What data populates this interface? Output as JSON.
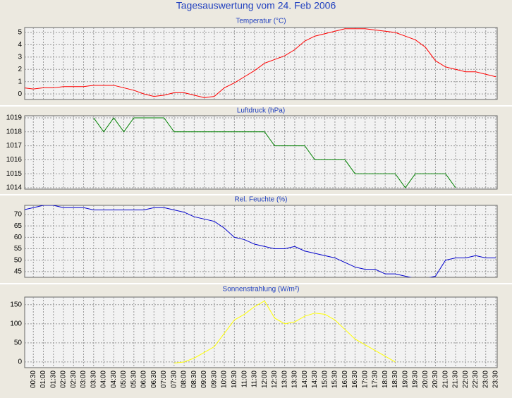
{
  "title": "Tagesauswertung vom 24. Feb 2006",
  "chart_data": [
    {
      "type": "line",
      "title": "Temperatur (°C)",
      "color": "#ff0000",
      "ylim": [
        -0.45,
        5.4
      ],
      "yticks": [
        0,
        1,
        2,
        3,
        4,
        5
      ],
      "grid": true,
      "values": [
        0.5,
        0.4,
        0.5,
        0.5,
        0.6,
        0.6,
        0.6,
        0.7,
        0.7,
        0.7,
        0.5,
        0.3,
        0.0,
        -0.2,
        -0.1,
        0.1,
        0.1,
        -0.1,
        -0.3,
        -0.2,
        0.5,
        0.9,
        1.4,
        1.9,
        2.5,
        2.8,
        3.1,
        3.6,
        4.3,
        4.7,
        4.9,
        5.1,
        5.3,
        5.3,
        5.3,
        5.2,
        5.1,
        5.0,
        4.7,
        4.4,
        3.8,
        2.7,
        2.2,
        2.0,
        1.8,
        1.8,
        1.6,
        1.4
      ]
    },
    {
      "type": "line",
      "title": "Luftdruck (hPa)",
      "color": "#008000",
      "ylim": [
        1013.9,
        1019.15
      ],
      "yticks": [
        1014,
        1015,
        1016,
        1017,
        1018,
        1019
      ],
      "grid": true,
      "values": [
        null,
        null,
        null,
        null,
        null,
        null,
        null,
        1019,
        1018,
        1019,
        1018,
        1019,
        1019,
        1019,
        1019,
        1018,
        1018,
        1018,
        1018,
        1018,
        1018,
        1018,
        1018,
        1018,
        1018,
        1017,
        1017,
        1017,
        1017,
        1016,
        1016,
        1016,
        1016,
        1015,
        1015,
        1015,
        1015,
        1015,
        1014,
        1015,
        1015,
        1015,
        1015,
        1014,
        null,
        null,
        null,
        null
      ]
    },
    {
      "type": "line",
      "title": "Rel. Feuchte (%)",
      "color": "#0000cc",
      "ylim": [
        42.5,
        74
      ],
      "yticks": [
        45,
        50,
        55,
        60,
        65,
        70
      ],
      "grid": true,
      "values": [
        72,
        73,
        74,
        74,
        73,
        73,
        73,
        72,
        72,
        72,
        72,
        72,
        72,
        73,
        73,
        72,
        71,
        69,
        68,
        67,
        64,
        60,
        59,
        57,
        56,
        55,
        55,
        56,
        54,
        53,
        52,
        51,
        49,
        47,
        46,
        46,
        44,
        44,
        43,
        42,
        42,
        43,
        50,
        51,
        51,
        52,
        51,
        51
      ]
    },
    {
      "type": "line",
      "title": "Sonnenstrahlung (W/m²)",
      "color": "#ffff00",
      "ylim": [
        -15,
        170
      ],
      "yticks": [
        0,
        50,
        100,
        150
      ],
      "grid": true,
      "categories": [
        null,
        "00:30",
        "01:00",
        "01:30",
        "02:00",
        "02:30",
        "03:00",
        "03:30",
        "04:00",
        "04:30",
        "05:00",
        "05:30",
        "06:00",
        "06:30",
        "07:00",
        "07:30",
        "08:00",
        "08:30",
        "09:00",
        "09:30",
        "10:00",
        "10:30",
        "11:00",
        "11:30",
        "12:00",
        "12:30",
        "13:00",
        "13:30",
        "14:00",
        "14:30",
        "15:00",
        "15:30",
        "16:00",
        "16:30",
        "17:00",
        "17:30",
        "18:00",
        "18:30",
        "19:00",
        "19:30",
        "20:00",
        "20:30",
        "21:00",
        "21:30",
        "22:00",
        "22:30",
        "23:00",
        "23:30"
      ],
      "values": [
        null,
        null,
        null,
        null,
        null,
        null,
        null,
        null,
        null,
        null,
        null,
        null,
        null,
        null,
        null,
        -3,
        0,
        10,
        25,
        40,
        75,
        110,
        125,
        145,
        160,
        115,
        100,
        105,
        120,
        128,
        125,
        110,
        85,
        60,
        45,
        30,
        15,
        0,
        null,
        null,
        null,
        null,
        null,
        null,
        null,
        null,
        null,
        null
      ]
    }
  ]
}
